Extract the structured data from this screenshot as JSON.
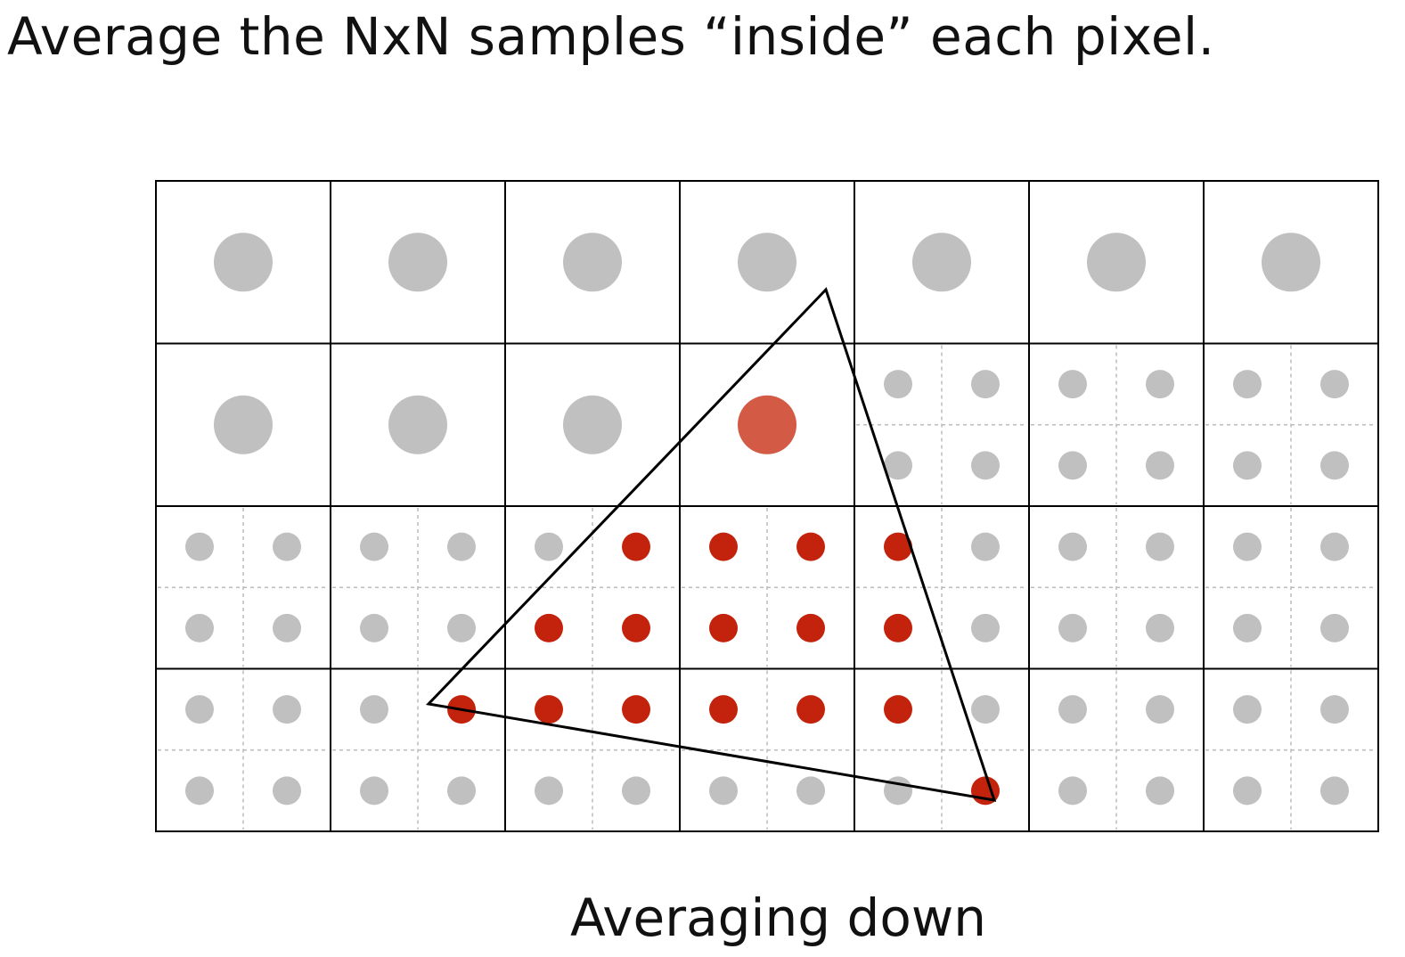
{
  "slide": {
    "title": "Average the NxN samples “inside” each pixel.",
    "caption": "Averaging down"
  },
  "grid": {
    "cols": 7,
    "rows": 4,
    "supersample_pixels": [
      [
        0,
        0,
        0,
        0,
        0,
        0,
        0
      ],
      [
        0,
        0,
        0,
        0,
        1,
        1,
        1
      ],
      [
        1,
        1,
        1,
        1,
        1,
        1,
        1
      ],
      [
        1,
        1,
        1,
        1,
        1,
        1,
        1
      ]
    ],
    "averaged_pixel_fill": [
      [
        0,
        0,
        0,
        0,
        0,
        0,
        0
      ],
      [
        0,
        0,
        0,
        0.75,
        0,
        0,
        0
      ],
      [
        0,
        0,
        0,
        0,
        0,
        0,
        0
      ],
      [
        0,
        0,
        0,
        0,
        0,
        0,
        0
      ]
    ],
    "subsample_covered": [
      [
        0,
        0,
        0,
        0,
        0,
        0,
        0,
        0,
        0,
        0,
        0,
        0,
        0,
        0
      ],
      [
        0,
        0,
        0,
        0,
        0,
        0,
        0,
        0,
        0,
        0,
        0,
        0,
        0,
        0
      ],
      [
        0,
        0,
        0,
        0,
        0,
        0,
        0,
        0,
        0,
        0,
        0,
        0,
        0,
        0
      ],
      [
        0,
        0,
        0,
        0,
        0,
        0,
        0,
        0,
        0,
        0,
        0,
        0,
        0,
        0
      ],
      [
        0,
        0,
        0,
        0,
        0,
        1,
        1,
        1,
        1,
        0,
        0,
        0,
        0,
        0
      ],
      [
        0,
        0,
        0,
        0,
        1,
        1,
        1,
        1,
        1,
        0,
        0,
        0,
        0,
        0
      ],
      [
        0,
        0,
        0,
        1,
        1,
        1,
        1,
        1,
        1,
        0,
        0,
        0,
        0,
        0
      ],
      [
        0,
        0,
        0,
        0,
        0,
        0,
        0,
        0,
        0,
        1,
        0,
        0,
        0,
        0
      ]
    ]
  },
  "colors": {
    "uncovered_sample": "#c0c0c0",
    "covered_sample": "#c3230c",
    "averaged_mix": "#d35a45",
    "grid_line": "#000000",
    "dashed_line": "#bcbcbc",
    "triangle_stroke": "#000000"
  }
}
